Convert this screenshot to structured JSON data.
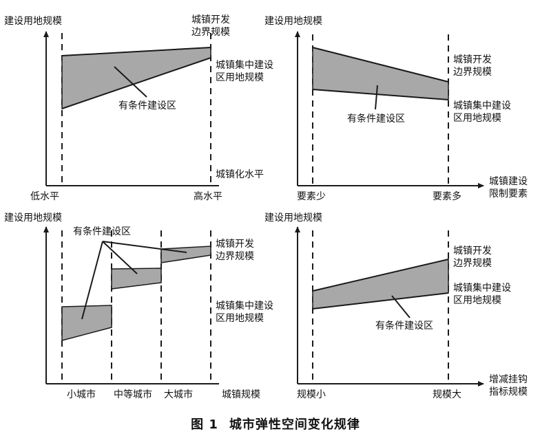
{
  "panels": {
    "p1": {
      "y_axis_label": "建设用地规模",
      "x_axis_label": "城镇化水平",
      "x_ticks": [
        "低水平",
        "高水平"
      ],
      "upper_label": "城镇开发\n边界规模",
      "lower_label": "城镇集中建设\n区用地规模",
      "region_label": "有条件建设区"
    },
    "p2": {
      "y_axis_label": "建设用地规模",
      "x_axis_label": "城镇建设\n限制要素",
      "x_ticks": [
        "要素少",
        "要素多"
      ],
      "upper_label": "城镇开发\n边界规模",
      "lower_label": "城镇集中建设\n区用地规模",
      "region_label": "有条件建设区"
    },
    "p3": {
      "y_axis_label": "建设用地规模",
      "x_axis_label": "城镇规模",
      "x_ticks": [
        "小城市",
        "中等城市",
        "大城市"
      ],
      "upper_label": "城镇开发\n边界规模",
      "lower_label": "城镇集中建设\n区用地规模",
      "region_label": "有条件建设区"
    },
    "p4": {
      "y_axis_label": "建设用地规模",
      "x_axis_label": "增减挂钩\n指标规模",
      "x_ticks": [
        "规模小",
        "规模大"
      ],
      "upper_label": "城镇开发\n边界规模",
      "lower_label": "城镇集中建设\n区用地规模",
      "region_label": "有条件建设区"
    }
  },
  "caption": {
    "figure_no": "图 1",
    "title": "城市弹性空间变化规律"
  },
  "colors": {
    "fill": "#a8a8a8",
    "line": "#1a1a1a",
    "text": "#111111"
  }
}
